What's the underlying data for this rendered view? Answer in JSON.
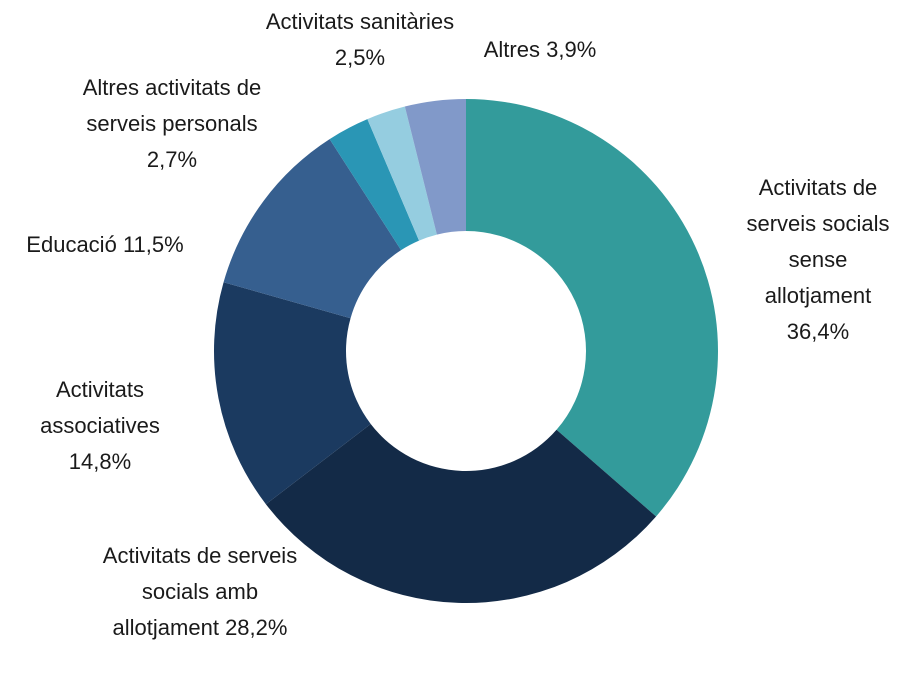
{
  "chart_data": {
    "type": "pie",
    "categories": [
      "Activitats de serveis socials sense allotjament",
      "Activitats de serveis socials amb allotjament",
      "Activitats associatives",
      "Educació",
      "Altres activitats de serveis personals",
      "Activitats sanitàries",
      "Altres"
    ],
    "values": [
      36.4,
      28.2,
      14.8,
      11.5,
      2.7,
      2.5,
      3.9
    ],
    "value_labels": [
      "36,4%",
      "28,2%",
      "14,8%",
      "11,5%",
      "2,7%",
      "2,5%",
      "3,9%"
    ],
    "colors": [
      "#339b9b",
      "#132a47",
      "#1b3a60",
      "#365f8f",
      "#2a96b5",
      "#95cde0",
      "#8199c9"
    ]
  }
}
